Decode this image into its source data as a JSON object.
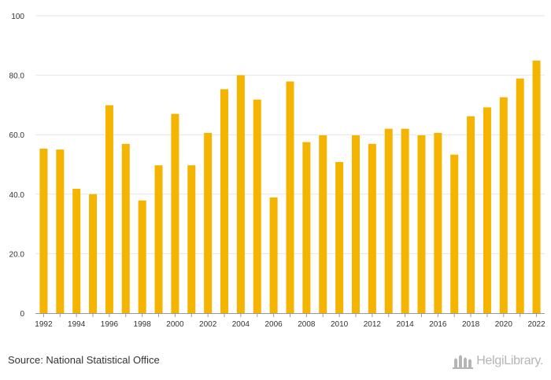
{
  "chart_data": {
    "type": "bar",
    "categories": [
      "1992",
      "1993",
      "1994",
      "1995",
      "1996",
      "1997",
      "1998",
      "1999",
      "2000",
      "2001",
      "2002",
      "2003",
      "2004",
      "2005",
      "2006",
      "2007",
      "2008",
      "2009",
      "2010",
      "2011",
      "2012",
      "2013",
      "2014",
      "2015",
      "2016",
      "2017",
      "2018",
      "2019",
      "2020",
      "2021",
      "2022"
    ],
    "x_tick_labels": [
      "1992",
      "1994",
      "1996",
      "1998",
      "2000",
      "2002",
      "2004",
      "2006",
      "2008",
      "2010",
      "2012",
      "2014",
      "2016",
      "2018",
      "2020",
      "2022"
    ],
    "values": [
      55.3,
      55.0,
      41.8,
      40.0,
      69.9,
      56.9,
      37.9,
      49.7,
      67.0,
      49.7,
      60.6,
      75.3,
      80.0,
      71.8,
      38.9,
      77.9,
      57.5,
      59.8,
      50.8,
      59.8,
      56.9,
      62.0,
      62.0,
      59.8,
      60.6,
      53.3,
      66.2,
      69.2,
      72.6,
      78.9,
      84.9
    ],
    "ylim": [
      0,
      100
    ],
    "y_ticks": [
      0,
      20,
      40,
      60,
      80,
      100
    ],
    "y_tick_labels": [
      "0",
      "20.0",
      "40.0",
      "60.0",
      "80.0",
      "100"
    ],
    "bar_color": "#f5b400",
    "grid": true,
    "title": "",
    "xlabel": "",
    "ylabel": ""
  },
  "footer": {
    "source": "Source: National Statistical Office",
    "brand": "HelgiLibrary."
  },
  "colors": {
    "bar": "#f5b400",
    "grid": "#e6e6e6",
    "axis": "#999999",
    "text": "#333333"
  }
}
